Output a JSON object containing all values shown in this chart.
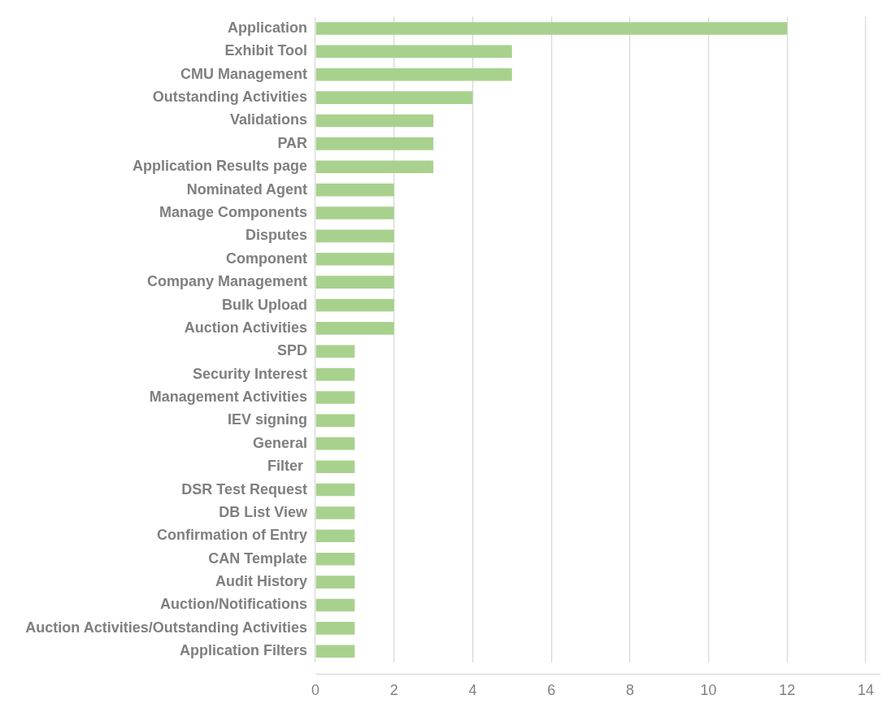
{
  "chart_data": {
    "type": "bar",
    "orientation": "horizontal",
    "categories": [
      "Application",
      "Exhibit Tool",
      "CMU Management",
      "Outstanding Activities",
      "Validations",
      "PAR",
      "Application Results page",
      "Nominated Agent",
      "Manage Components",
      "Disputes",
      "Component",
      "Company Management",
      "Bulk Upload",
      "Auction Activities",
      "SPD",
      "Security Interest",
      "Management Activities",
      "IEV signing",
      "General",
      "Filter ",
      "DSR Test Request",
      "DB List View",
      "Confirmation of Entry",
      "CAN Template",
      "Audit History",
      "Auction/Notifications",
      "Auction Activities/Outstanding Activities",
      "Application Filters"
    ],
    "values": [
      12,
      5,
      5,
      4,
      3,
      3,
      3,
      2,
      2,
      2,
      2,
      2,
      2,
      2,
      1,
      1,
      1,
      1,
      1,
      1,
      1,
      1,
      1,
      1,
      1,
      1,
      1,
      1
    ],
    "color": "#a9d18e",
    "xlim": [
      0,
      14
    ],
    "xticks": [
      0,
      2,
      4,
      6,
      8,
      10,
      12,
      14
    ],
    "grid": "x",
    "legend": false
  }
}
